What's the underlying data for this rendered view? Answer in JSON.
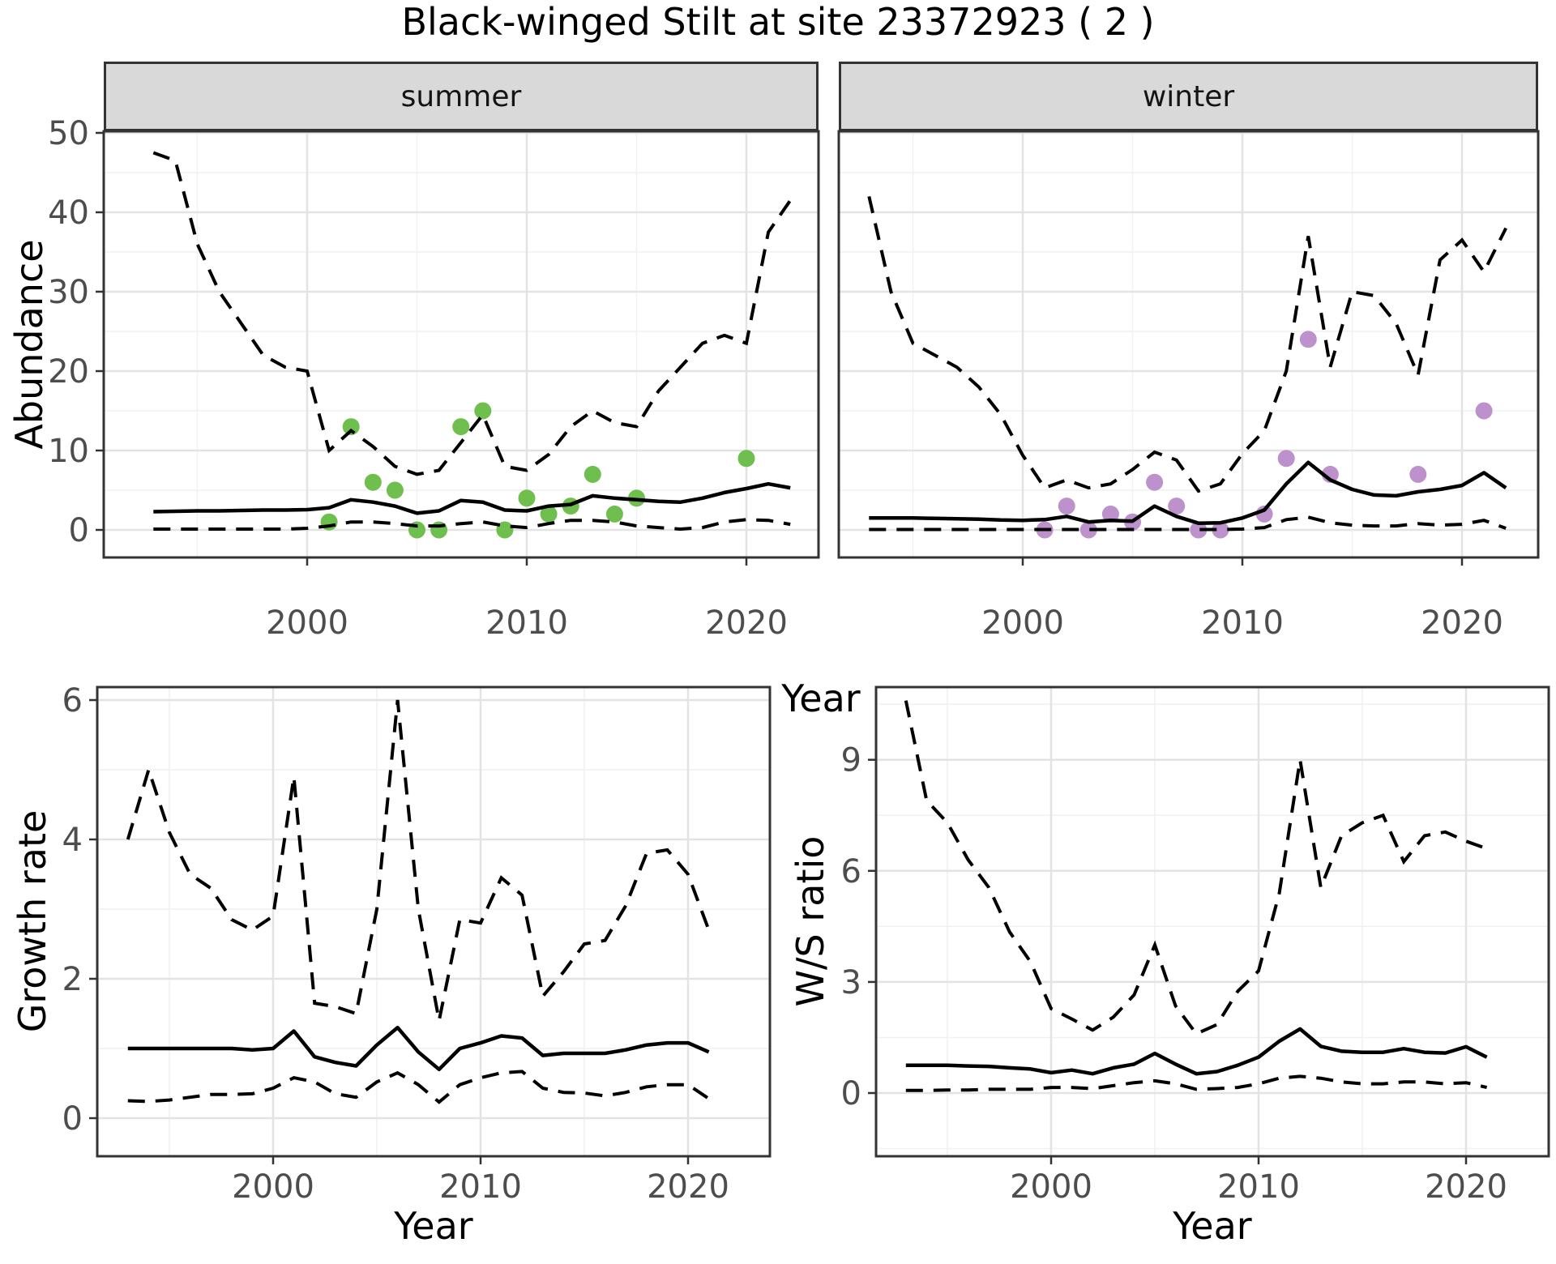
{
  "chart_data": {
    "type": "line",
    "title": "Black-winged Stilt at site 23372923 ( 2 )",
    "abundance": {
      "ylabel": "Abundance",
      "xlabel": "Year",
      "ylim": [
        0,
        50
      ],
      "x_ticks": [
        2000,
        2010,
        2020
      ],
      "y_ticks": [
        0,
        10,
        20,
        30,
        40,
        50
      ],
      "years": [
        1993,
        1994,
        1995,
        1996,
        1997,
        1998,
        1999,
        2000,
        2001,
        2002,
        2003,
        2004,
        2005,
        2006,
        2007,
        2008,
        2009,
        2010,
        2011,
        2012,
        2013,
        2014,
        2015,
        2016,
        2017,
        2018,
        2019,
        2020,
        2021,
        2022
      ],
      "facets": {
        "summer": {
          "label": "summer",
          "point_color": "#6fbf4f",
          "mean": [
            2.3,
            2.35,
            2.4,
            2.4,
            2.45,
            2.5,
            2.5,
            2.55,
            2.8,
            3.8,
            3.5,
            3.0,
            2.1,
            2.4,
            3.7,
            3.5,
            2.5,
            2.4,
            3.0,
            3.2,
            4.3,
            4.0,
            3.8,
            3.6,
            3.5,
            4.0,
            4.7,
            5.2,
            5.8,
            5.3
          ],
          "upper_ci": [
            47.5,
            46.5,
            36,
            30,
            26,
            22,
            20.5,
            20,
            10,
            12.5,
            10.5,
            8,
            7,
            7.5,
            11,
            14.5,
            8,
            7.5,
            9.5,
            13,
            15,
            13.5,
            13,
            17.5,
            20.5,
            23.5,
            24.5,
            23.5,
            37.5,
            41.5
          ],
          "lower_ci": [
            0.1,
            0.1,
            0.1,
            0.1,
            0.1,
            0.1,
            0.1,
            0.2,
            0.5,
            1.0,
            1.0,
            0.8,
            0.5,
            0.5,
            0.8,
            1.0,
            0.5,
            0.3,
            0.8,
            1.2,
            1.2,
            1.0,
            0.5,
            0.3,
            0.1,
            0.3,
            1.0,
            1.3,
            1.2,
            0.7
          ],
          "observed_years": [
            2001,
            2002,
            2003,
            2004,
            2005,
            2006,
            2007,
            2008,
            2009,
            2010,
            2011,
            2012,
            2013,
            2014,
            2015,
            2020
          ],
          "observed_counts": [
            1,
            13,
            6,
            5,
            0,
            0,
            13,
            15,
            0,
            4,
            2,
            3,
            7,
            2,
            4,
            9
          ]
        },
        "winter": {
          "label": "winter",
          "point_color": "#bd92cc",
          "mean": [
            1.5,
            1.5,
            1.5,
            1.45,
            1.4,
            1.35,
            1.25,
            1.2,
            1.3,
            1.7,
            1.0,
            1.2,
            1.1,
            3.0,
            1.7,
            0.85,
            0.9,
            1.5,
            2.5,
            5.8,
            8.5,
            6.3,
            5.1,
            4.4,
            4.3,
            4.8,
            5.1,
            5.6,
            7.2,
            5.3
          ],
          "upper_ci": [
            42,
            30,
            23.5,
            22,
            20.5,
            18,
            14.5,
            9.4,
            5.3,
            6.3,
            5.3,
            5.8,
            7.6,
            9.8,
            8.8,
            4.9,
            5.8,
            9.6,
            12.5,
            20,
            37,
            20.5,
            30,
            29.5,
            26,
            19.5,
            34,
            36.5,
            32.5,
            38
          ],
          "lower_ci": [
            0.05,
            0.05,
            0.05,
            0.05,
            0.05,
            0.05,
            0.05,
            0.05,
            0.05,
            0.05,
            0.05,
            0.05,
            0.05,
            0.05,
            0.05,
            0.05,
            0.05,
            0.1,
            0.3,
            1.3,
            1.6,
            0.9,
            0.6,
            0.5,
            0.5,
            0.8,
            0.6,
            0.7,
            1.2,
            0.2
          ],
          "observed_years": [
            2001,
            2002,
            2003,
            2004,
            2005,
            2006,
            2007,
            2008,
            2009,
            2011,
            2012,
            2013,
            2014,
            2018,
            2021
          ],
          "observed_counts": [
            0,
            3,
            0,
            2,
            1,
            6,
            3,
            0,
            0,
            2,
            9,
            24,
            7,
            7,
            15
          ]
        }
      }
    },
    "growth_rate": {
      "ylabel": "Growth rate",
      "xlabel": "Year",
      "ylim": [
        0,
        6
      ],
      "x_ticks": [
        2000,
        2010,
        2020
      ],
      "y_ticks": [
        0,
        2,
        4,
        6
      ],
      "years": [
        1993,
        1994,
        1995,
        1996,
        1997,
        1998,
        1999,
        2000,
        2001,
        2002,
        2003,
        2004,
        2005,
        2006,
        2007,
        2008,
        2009,
        2010,
        2011,
        2012,
        2013,
        2014,
        2015,
        2016,
        2017,
        2018,
        2019,
        2020,
        2021
      ],
      "mean": [
        1.0,
        1.0,
        1.0,
        1.0,
        1.0,
        1.0,
        0.98,
        1.0,
        1.25,
        0.88,
        0.8,
        0.75,
        1.05,
        1.3,
        0.95,
        0.7,
        1.0,
        1.08,
        1.18,
        1.15,
        0.9,
        0.93,
        0.93,
        0.93,
        0.98,
        1.05,
        1.08,
        1.08,
        0.95
      ],
      "upper_ci": [
        4.0,
        5.0,
        4.1,
        3.5,
        3.3,
        2.85,
        2.7,
        2.9,
        4.9,
        1.65,
        1.6,
        1.5,
        3.0,
        6.0,
        3.0,
        1.4,
        2.85,
        2.8,
        3.45,
        3.2,
        1.75,
        2.1,
        2.5,
        2.55,
        3.05,
        3.8,
        3.85,
        3.5,
        2.7
      ],
      "lower_ci": [
        0.25,
        0.24,
        0.26,
        0.3,
        0.34,
        0.34,
        0.35,
        0.43,
        0.58,
        0.52,
        0.35,
        0.3,
        0.52,
        0.65,
        0.48,
        0.23,
        0.48,
        0.58,
        0.65,
        0.67,
        0.43,
        0.37,
        0.36,
        0.32,
        0.37,
        0.45,
        0.48,
        0.48,
        0.28
      ]
    },
    "ws_ratio": {
      "ylabel": "W/S ratio",
      "xlabel": "Year",
      "ylim": [
        0,
        9
      ],
      "x_ticks": [
        2000,
        2010,
        2020
      ],
      "y_ticks": [
        0,
        3,
        6,
        9
      ],
      "years": [
        1993,
        1994,
        1995,
        1996,
        1997,
        1998,
        1999,
        2000,
        2001,
        2002,
        2003,
        2004,
        2005,
        2006,
        2007,
        2008,
        2009,
        2010,
        2011,
        2012,
        2013,
        2014,
        2015,
        2016,
        2017,
        2018,
        2019,
        2020,
        2021
      ],
      "mean": [
        0.75,
        0.75,
        0.75,
        0.73,
        0.72,
        0.68,
        0.65,
        0.55,
        0.62,
        0.52,
        0.68,
        0.78,
        1.07,
        0.78,
        0.52,
        0.58,
        0.75,
        0.97,
        1.4,
        1.73,
        1.26,
        1.13,
        1.1,
        1.1,
        1.2,
        1.1,
        1.08,
        1.25,
        0.97
      ],
      "upper_ci": [
        10.6,
        7.9,
        7.3,
        6.3,
        5.55,
        4.35,
        3.55,
        2.28,
        2.0,
        1.7,
        2.05,
        2.65,
        4.0,
        2.35,
        1.6,
        1.85,
        2.75,
        3.3,
        5.4,
        9.0,
        5.55,
        6.95,
        7.3,
        7.5,
        6.25,
        6.95,
        7.05,
        6.8,
        6.6
      ],
      "lower_ci": [
        0.07,
        0.07,
        0.08,
        0.08,
        0.1,
        0.1,
        0.1,
        0.15,
        0.15,
        0.12,
        0.2,
        0.28,
        0.33,
        0.25,
        0.1,
        0.12,
        0.15,
        0.25,
        0.4,
        0.45,
        0.4,
        0.3,
        0.25,
        0.25,
        0.3,
        0.3,
        0.25,
        0.28,
        0.15
      ]
    },
    "style": {
      "line_color": "#000000",
      "ci_line_style": "dashed",
      "mean_line_style": "solid",
      "strip_bg": "#d9d9d9",
      "grid_major": "#e3e3e3",
      "grid_minor": "#f1f1f1",
      "tick_label_color": "#4d4d4d",
      "panel_border": "#333333"
    }
  }
}
